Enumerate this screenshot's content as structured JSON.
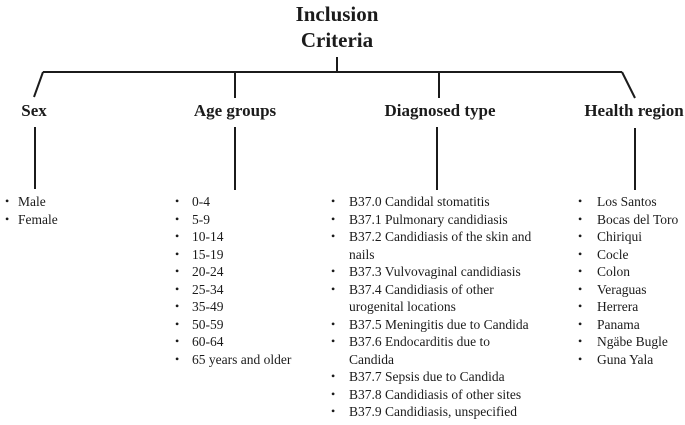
{
  "title": "Inclusion Criteria",
  "branches": [
    {
      "label": "Sex",
      "items": [
        "Male",
        "Female"
      ]
    },
    {
      "label": "Age groups",
      "items": [
        "0-4",
        "5-9",
        "10-14",
        "15-19",
        "20-24",
        "25-34",
        "35-49",
        "50-59",
        "60-64",
        "65 years and older"
      ]
    },
    {
      "label": "Diagnosed type",
      "items": [
        "B37.0 Candidal stomatitis",
        "B37.1 Pulmonary candidiasis",
        "B37.2 Candidiasis of the skin and\nnails",
        "B37.3 Vulvovaginal candidiasis",
        "B37.4 Candidiasis of other\nurogenital locations",
        "B37.5 Meningitis due to Candida",
        "B37.6 Endocarditis due to\nCandida",
        "B37.7 Sepsis due to Candida",
        "B37.8 Candidiasis of other sites",
        "B37.9 Candidiasis, unspecified"
      ]
    },
    {
      "label": "Health region",
      "items": [
        "Los Santos",
        "Bocas del Toro",
        "Chiriqui",
        "Cocle",
        "Colon",
        "Veraguas",
        "Herrera",
        "Panama",
        "Ngäbe Bugle",
        "Guna Yala"
      ]
    }
  ],
  "colors": {
    "line": "#1b1b1b",
    "text": "#1b1b1b",
    "background": "#ffffff"
  }
}
